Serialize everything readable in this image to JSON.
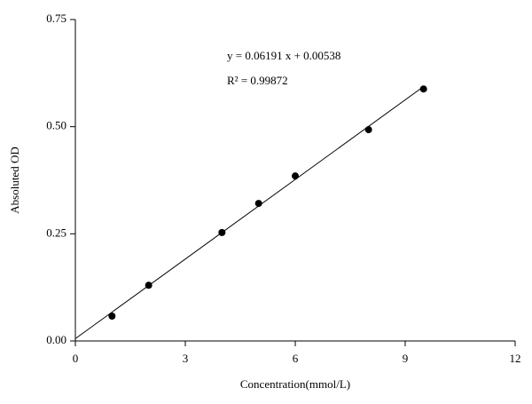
{
  "chart_data": {
    "type": "scatter",
    "x_label": "Concentration(mmol/L)",
    "y_label": "Absoluted OD",
    "annotations": [
      "y = 0.06191 x + 0.00538",
      "R² = 0.99872"
    ],
    "x": [
      1,
      2,
      4,
      5,
      6,
      8,
      9.5
    ],
    "values": [
      0.058,
      0.13,
      0.253,
      0.321,
      0.385,
      0.493,
      0.588
    ],
    "color": "#000000",
    "fit": {
      "slope": 0.06191,
      "intercept": 0.00538,
      "x": [
        0,
        9.5
      ]
    },
    "xlim": [
      0,
      12
    ],
    "xticks": [
      0,
      3,
      6,
      9,
      12
    ],
    "ylim": [
      0,
      0.75
    ],
    "yticks": [
      {
        "value": 0,
        "label": "0.00"
      },
      0.25,
      {
        "value": 0.5,
        "label": "0.50"
      },
      0.75
    ]
  }
}
